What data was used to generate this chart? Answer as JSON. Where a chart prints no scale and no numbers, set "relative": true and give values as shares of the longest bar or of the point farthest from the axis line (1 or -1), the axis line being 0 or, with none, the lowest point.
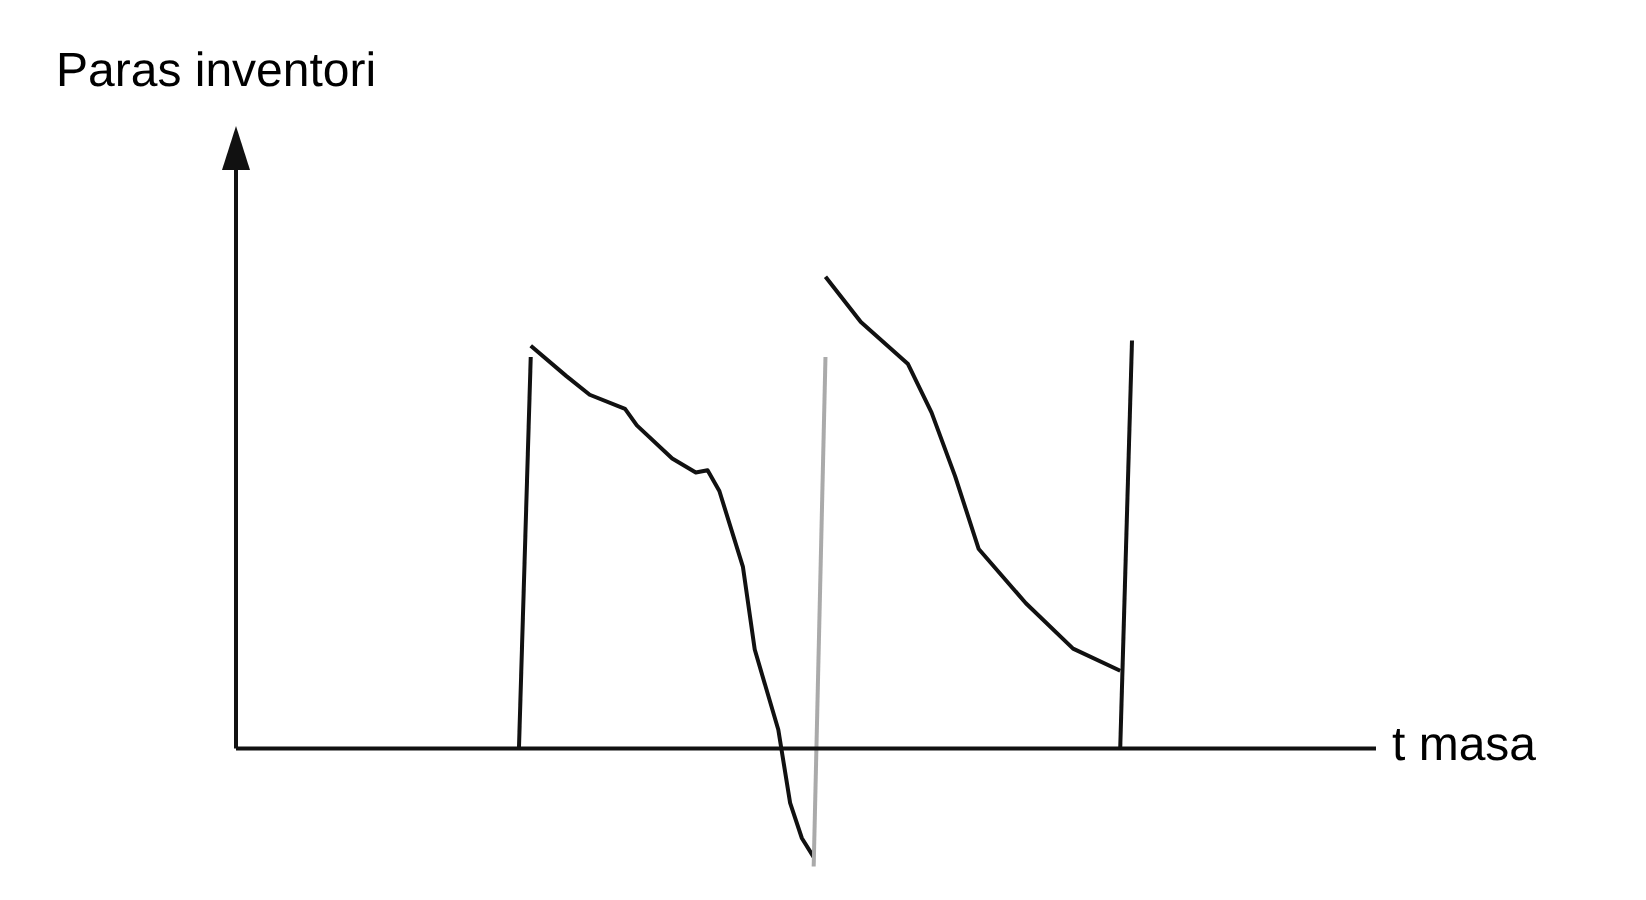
{
  "chart_data": {
    "type": "line",
    "relative": true,
    "ylabel": "Paras inventori",
    "xlabel": "t masa",
    "tick_labels": false,
    "grid": false,
    "legend": false,
    "marker": "none",
    "categories": [
      null,
      null,
      null,
      null,
      null,
      null,
      null,
      null,
      null,
      null,
      null,
      null,
      null,
      null,
      null,
      null,
      null,
      null,
      null,
      null,
      null,
      null,
      null,
      null,
      null,
      null,
      null,
      null,
      null,
      null,
      null,
      null,
      null,
      null,
      null,
      null,
      null,
      null,
      null,
      null,
      null,
      null,
      null,
      null,
      null,
      null,
      null,
      null,
      null,
      null,
      null,
      null,
      null,
      null,
      null,
      null,
      null,
      null,
      null,
      null,
      null,
      null,
      null,
      null,
      null,
      null,
      null,
      null,
      null,
      null,
      null,
      null,
      null,
      null,
      null,
      null,
      null,
      null,
      null,
      null,
      null,
      null,
      null,
      null,
      null,
      null,
      null,
      null,
      null,
      null,
      null,
      null,
      null,
      null,
      null,
      null
    ],
    "series": [
      {
        "color": "#111111",
        "values": [
          null,
          null,
          null,
          null,
          null,
          null,
          null,
          null,
          null,
          null,
          null,
          null,
          null,
          null,
          null,
          null,
          null,
          null,
          null,
          null,
          null,
          null,
          null,
          null,
          0,
          0.83,
          null,
          null,
          null,
          null,
          null,
          null,
          null,
          null,
          null,
          null,
          null,
          null,
          null,
          null,
          null,
          null,
          null,
          null,
          null,
          null,
          null,
          null,
          null,
          null,
          null,
          null,
          null,
          null,
          null,
          null,
          null,
          null,
          null,
          null,
          null,
          null,
          null,
          null,
          null,
          null,
          null,
          null,
          null,
          null,
          null,
          null,
          null,
          null,
          null,
          null,
          null,
          null,
          null,
          null,
          null,
          null,
          null,
          null,
          null,
          null,
          null,
          null,
          null,
          null,
          null,
          null,
          null,
          null,
          null,
          null
        ]
      },
      {
        "color": "#111111",
        "values": [
          null,
          null,
          null,
          null,
          null,
          null,
          null,
          null,
          null,
          null,
          null,
          null,
          null,
          null,
          null,
          null,
          null,
          null,
          null,
          null,
          null,
          null,
          null,
          null,
          null,
          0.854,
          null,
          null,
          0.79,
          null,
          0.75,
          null,
          null,
          0.72,
          0.685,
          null,
          null,
          0.615,
          null,
          0.585,
          0.59,
          0.546,
          null,
          0.385,
          0.21,
          null,
          0.04,
          -0.115,
          -0.19,
          -0.23,
          null,
          null,
          null,
          null,
          null,
          null,
          null,
          null,
          null,
          null,
          null,
          null,
          null,
          null,
          null,
          null,
          null,
          null,
          null,
          null,
          null,
          null,
          null,
          null,
          null,
          null,
          null,
          null,
          null,
          null,
          null,
          null,
          null,
          null,
          null,
          null,
          null,
          null,
          null,
          null,
          null,
          null,
          null,
          null,
          null,
          null
        ]
      },
      {
        "color": "#aaaaaa",
        "values": [
          null,
          null,
          null,
          null,
          null,
          null,
          null,
          null,
          null,
          null,
          null,
          null,
          null,
          null,
          null,
          null,
          null,
          null,
          null,
          null,
          null,
          null,
          null,
          null,
          null,
          null,
          null,
          null,
          null,
          null,
          null,
          null,
          null,
          null,
          null,
          null,
          null,
          null,
          null,
          null,
          null,
          null,
          null,
          null,
          null,
          null,
          null,
          null,
          null,
          -0.25,
          0.83,
          null,
          null,
          null,
          null,
          null,
          null,
          null,
          null,
          null,
          null,
          null,
          null,
          null,
          null,
          null,
          null,
          null,
          null,
          null,
          null,
          null,
          null,
          null,
          null,
          null,
          null,
          null,
          null,
          null,
          null,
          null,
          null,
          null,
          null,
          null,
          null,
          null,
          null,
          null,
          null,
          null,
          null,
          null,
          null,
          null
        ]
      },
      {
        "color": "#111111",
        "values": [
          null,
          null,
          null,
          null,
          null,
          null,
          null,
          null,
          null,
          null,
          null,
          null,
          null,
          null,
          null,
          null,
          null,
          null,
          null,
          null,
          null,
          null,
          null,
          null,
          null,
          null,
          null,
          null,
          null,
          null,
          null,
          null,
          null,
          null,
          null,
          null,
          null,
          null,
          null,
          null,
          null,
          null,
          null,
          null,
          null,
          null,
          null,
          null,
          null,
          null,
          1,
          null,
          null,
          0.904,
          null,
          null,
          null,
          0.815,
          null,
          0.712,
          null,
          0.577,
          null,
          0.423,
          null,
          null,
          null,
          0.308,
          null,
          null,
          null,
          0.212,
          null,
          null,
          null,
          0.165,
          null,
          null,
          null,
          null,
          null,
          null,
          null,
          null,
          null,
          null,
          null,
          null,
          null,
          null,
          null,
          null,
          null,
          null,
          null,
          null
        ]
      },
      {
        "color": "#111111",
        "values": [
          null,
          null,
          null,
          null,
          null,
          null,
          null,
          null,
          null,
          null,
          null,
          null,
          null,
          null,
          null,
          null,
          null,
          null,
          null,
          null,
          null,
          null,
          null,
          null,
          null,
          null,
          null,
          null,
          null,
          null,
          null,
          null,
          null,
          null,
          null,
          null,
          null,
          null,
          null,
          null,
          null,
          null,
          null,
          null,
          null,
          null,
          null,
          null,
          null,
          null,
          null,
          null,
          null,
          null,
          null,
          null,
          null,
          null,
          null,
          null,
          null,
          null,
          null,
          null,
          null,
          null,
          null,
          null,
          null,
          null,
          null,
          null,
          null,
          null,
          null,
          0,
          0.865,
          null,
          null,
          null,
          null,
          null,
          null,
          null,
          null,
          null,
          null,
          null,
          null,
          null,
          null,
          null,
          null,
          null,
          null,
          null
        ]
      }
    ]
  }
}
